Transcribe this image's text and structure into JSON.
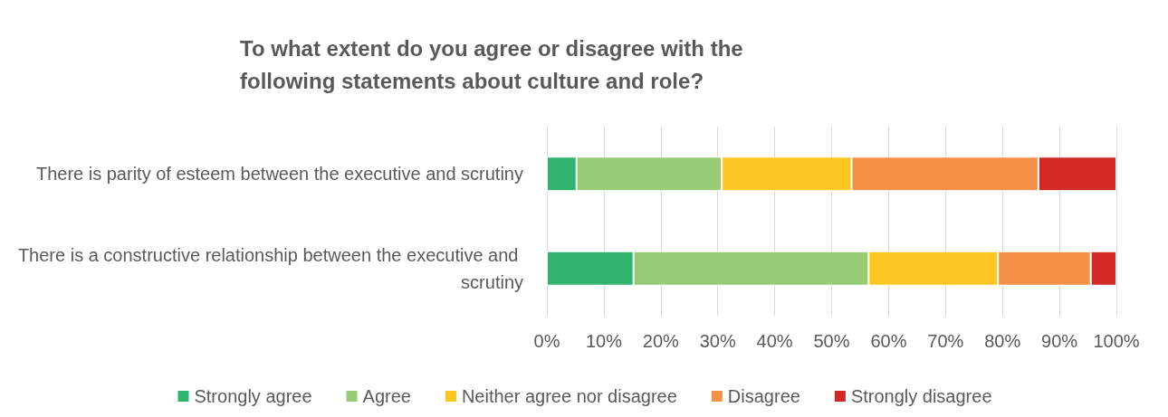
{
  "chart_data": {
    "type": "bar",
    "orientation": "horizontal",
    "stacked": true,
    "title": "To what extent do you agree or disagree with the following statements about culture and role?",
    "categories": [
      "There is parity of esteem between the executive and scrutiny",
      "There is a constructive relationship between the executive and scrutiny"
    ],
    "series": [
      {
        "name": "Strongly agree",
        "color": "#2fb36e",
        "values": [
          5.2,
          15.2
        ]
      },
      {
        "name": "Agree",
        "color": "#97cc74",
        "values": [
          25.5,
          41.3
        ]
      },
      {
        "name": "Neither agree nor disagree",
        "color": "#fdc620",
        "values": [
          22.8,
          22.7
        ]
      },
      {
        "name": "Disagree",
        "color": "#f49147",
        "values": [
          32.8,
          16.3
        ]
      },
      {
        "name": "Strongly disagree",
        "color": "#d22927",
        "values": [
          13.7,
          4.5
        ]
      }
    ],
    "xlim": [
      0,
      100
    ],
    "xticks": [
      {
        "value": 0,
        "label": "0%"
      },
      {
        "value": 10,
        "label": "10%"
      },
      {
        "value": 20,
        "label": "20%"
      },
      {
        "value": 30,
        "label": "30%"
      },
      {
        "value": 40,
        "label": "40%"
      },
      {
        "value": 50,
        "label": "50%"
      },
      {
        "value": 60,
        "label": "60%"
      },
      {
        "value": 70,
        "label": "70%"
      },
      {
        "value": 80,
        "label": "80%"
      },
      {
        "value": 90,
        "label": "90%"
      },
      {
        "value": 100,
        "label": "100%"
      }
    ],
    "grid": "x",
    "legend": "bottom"
  }
}
